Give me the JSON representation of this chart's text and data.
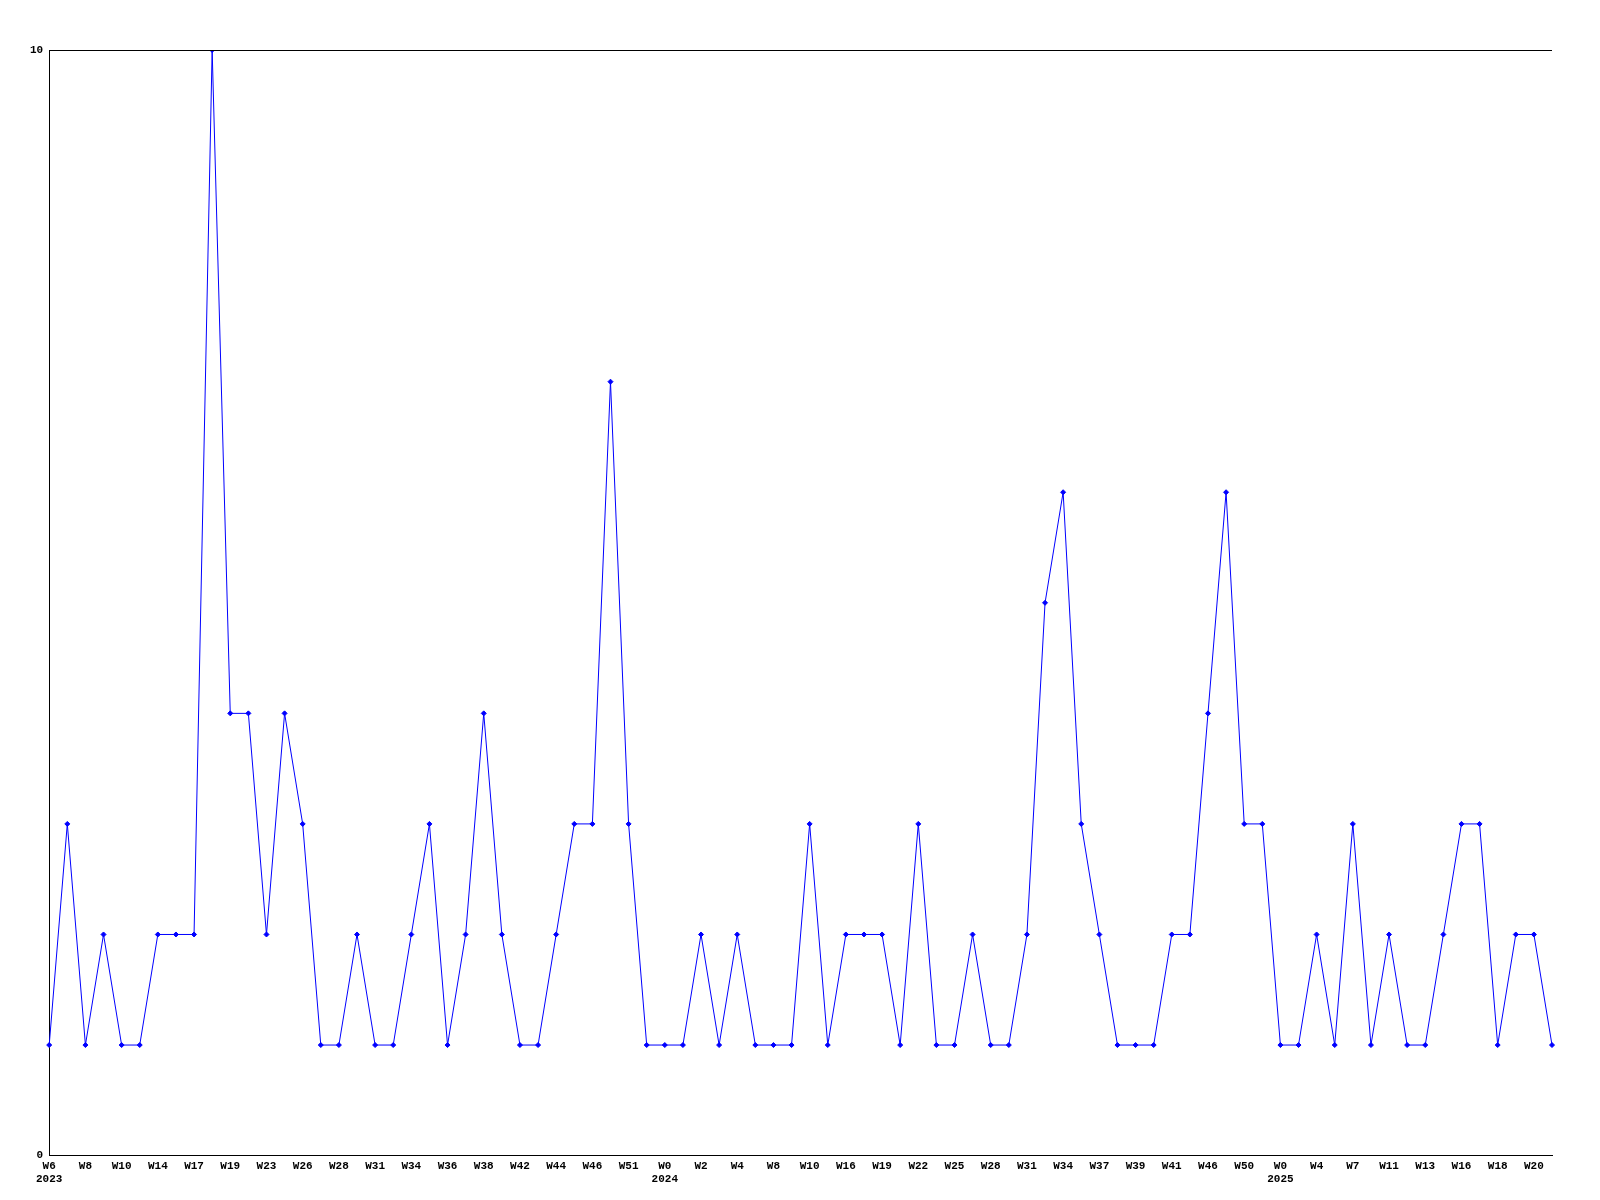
{
  "chart_data": {
    "type": "line",
    "categories": [
      "W6\n2023",
      null,
      "W8",
      null,
      "W10",
      null,
      "W14",
      null,
      "W17",
      null,
      "W19",
      null,
      "W23",
      null,
      "W26",
      null,
      "W28",
      null,
      "W31",
      null,
      "W34",
      null,
      "W36",
      null,
      "W38",
      null,
      "W42",
      null,
      "W44",
      null,
      "W46",
      null,
      "W51",
      null,
      "W0\n2024",
      null,
      "W2",
      null,
      "W4",
      null,
      "W8",
      null,
      "W10",
      null,
      "W16",
      null,
      "W19",
      null,
      "W22",
      null,
      "W25",
      null,
      "W28",
      null,
      "W31",
      null,
      "W34",
      null,
      "W37",
      null,
      "W39",
      null,
      "W41",
      null,
      "W46",
      null,
      "W50",
      null,
      "W0\n2025",
      null,
      "W4",
      null,
      "W7",
      null,
      "W11",
      null,
      "W13",
      null,
      "W16",
      null,
      "W18",
      null,
      "W20",
      null
    ],
    "series": [
      {
        "color": "#0000ff",
        "values": [
          1,
          3,
          1,
          2,
          1,
          1,
          2,
          2,
          2,
          10,
          4,
          4,
          2,
          4,
          3,
          1,
          1,
          2,
          1,
          1,
          2,
          3,
          1,
          2,
          4,
          2,
          1,
          1,
          2,
          3,
          3,
          7,
          3,
          1,
          1,
          1,
          2,
          1,
          2,
          1,
          1,
          1,
          3,
          1,
          2,
          2,
          2,
          1,
          3,
          1,
          1,
          2,
          1,
          1,
          2,
          5,
          6,
          3,
          2,
          1,
          1,
          1,
          2,
          2,
          4,
          6,
          3,
          3,
          1,
          1,
          2,
          1,
          3,
          1,
          2,
          1,
          1,
          2,
          3,
          3,
          1,
          2,
          2,
          1
        ]
      }
    ],
    "ylim": [
      0,
      10
    ],
    "yticks": [
      0,
      10
    ],
    "grid": false,
    "legend": false,
    "marker": "diamond",
    "line_style": "solid"
  }
}
